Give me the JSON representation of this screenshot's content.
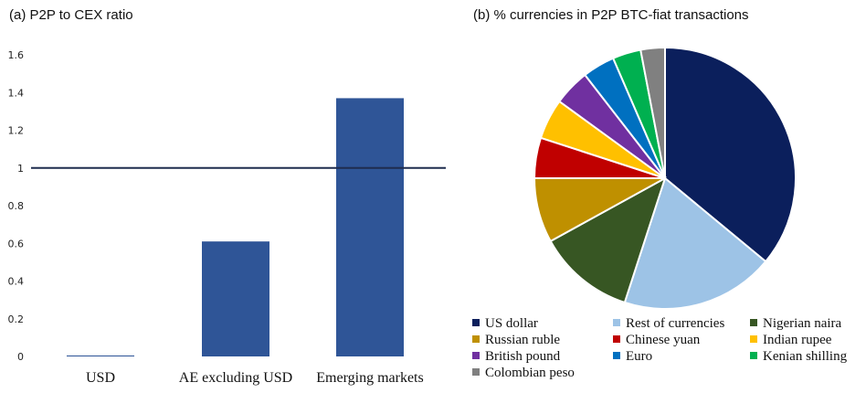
{
  "chart_data": [
    {
      "type": "bar",
      "title": "(a) P2P to CEX ratio",
      "categories": [
        "USD",
        "AE excluding USD",
        "Emerging markets"
      ],
      "values": [
        0.005,
        0.61,
        1.37
      ],
      "ylim": [
        0,
        1.6
      ],
      "yticks": [
        "0",
        "0.2",
        "0.4",
        "0.6",
        "0.8",
        "1",
        "1.2",
        "1.4",
        "1.6"
      ],
      "reference_line": 1,
      "bar_color": "#2f5597",
      "line_color": "#1f2d4f",
      "grid": false
    },
    {
      "type": "pie",
      "title": "(b) % currencies in P2P BTC-fiat transactions",
      "legend_position": "bottom",
      "slices": [
        {
          "label": "US dollar",
          "value": 36,
          "color": "#0b1f5c"
        },
        {
          "label": "Rest of currencies",
          "value": 19,
          "color": "#9dc3e6"
        },
        {
          "label": "Nigerian naira",
          "value": 12,
          "color": "#375623"
        },
        {
          "label": "Russian ruble",
          "value": 8,
          "color": "#bf9000"
        },
        {
          "label": "Chinese yuan",
          "value": 5,
          "color": "#c00000"
        },
        {
          "label": "Indian rupee",
          "value": 5,
          "color": "#ffc000"
        },
        {
          "label": "British pound",
          "value": 4.5,
          "color": "#7030a0"
        },
        {
          "label": "Euro",
          "value": 4,
          "color": "#0070c0"
        },
        {
          "label": "Kenian shilling",
          "value": 3.5,
          "color": "#00b050"
        },
        {
          "label": "Colombian peso",
          "value": 3,
          "color": "#808080"
        }
      ]
    }
  ]
}
